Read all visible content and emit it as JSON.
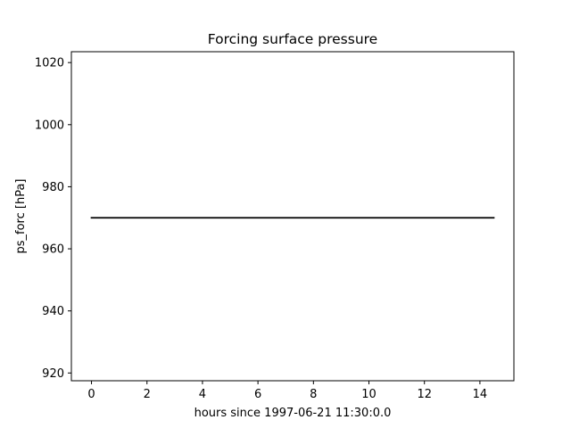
{
  "chart_data": {
    "type": "line",
    "title": "Forcing surface pressure",
    "xlabel": "hours since 1997-06-21 11:30:0.0",
    "ylabel": "ps_forc [hPa]",
    "xlim": [
      -0.725,
      15.225
    ],
    "ylim": [
      917.5,
      1023.5
    ],
    "xticks": [
      0,
      2,
      4,
      6,
      8,
      10,
      12,
      14
    ],
    "yticks": [
      920,
      940,
      960,
      980,
      1000,
      1020
    ],
    "grid": false,
    "series": [
      {
        "color": "#000000",
        "x": [
          0,
          14.5
        ],
        "y": [
          970,
          970
        ]
      }
    ]
  }
}
